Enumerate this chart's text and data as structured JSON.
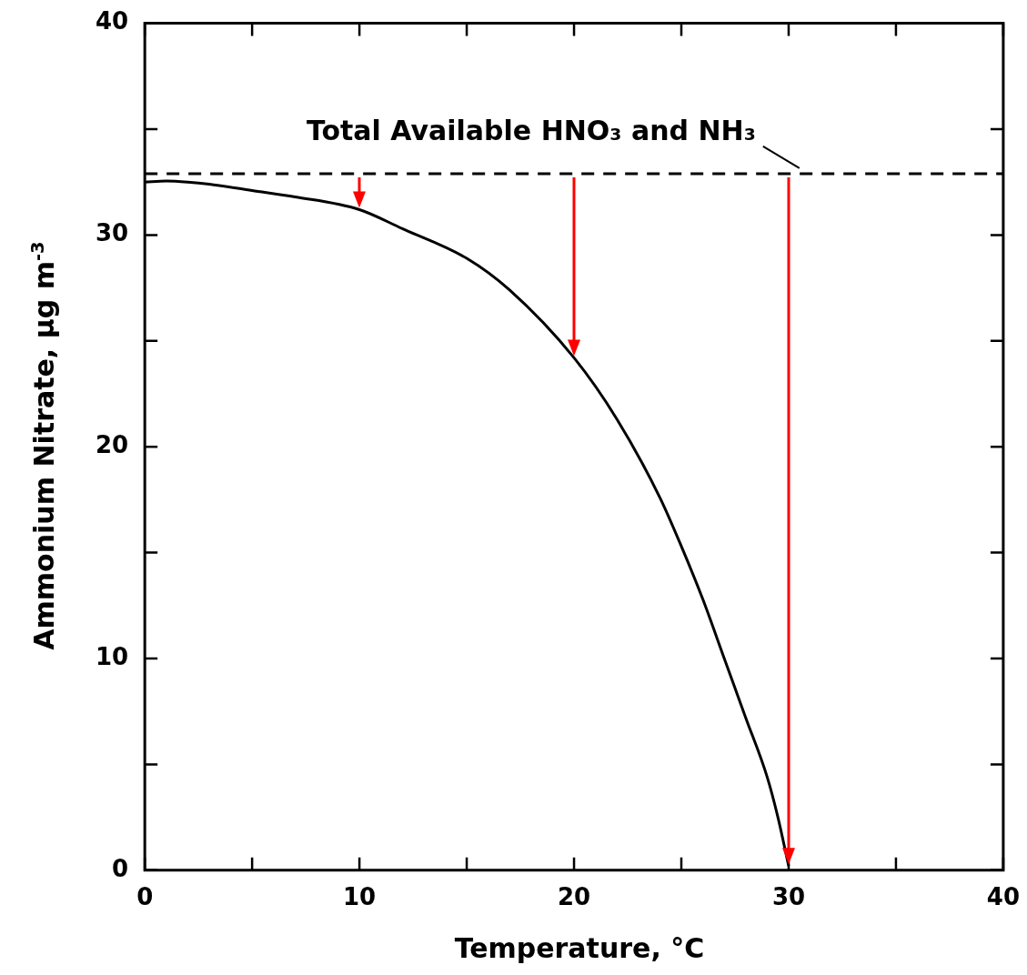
{
  "chart_data": {
    "type": "line",
    "xlabel": "Temperature, °C",
    "ylabel": "Ammonium Nitrate, μg m$^{-3}$",
    "x": [
      0,
      1,
      2,
      3,
      5,
      7,
      10,
      12,
      15,
      17,
      20,
      22,
      24,
      25,
      26,
      27,
      28,
      29,
      29.5,
      30
    ],
    "series": [
      {
        "color": "#000000",
        "values": [
          32.5,
          32.55,
          32.5,
          32.4,
          32.1,
          31.8,
          31.2,
          30.3,
          28.9,
          27.4,
          24.2,
          21.3,
          17.6,
          15.3,
          12.8,
          10.0,
          7.2,
          4.4,
          2.5,
          0.2
        ]
      }
    ],
    "xlim": [
      0,
      40
    ],
    "xticks": [
      0,
      {
        "value": 5,
        "label": null
      },
      10,
      {
        "value": 15,
        "label": null
      },
      20,
      {
        "value": 25,
        "label": null
      },
      30,
      {
        "value": 35,
        "label": null
      },
      40
    ],
    "ylim": [
      0,
      40
    ],
    "yticks": [
      0,
      {
        "value": 5,
        "label": null
      },
      10,
      {
        "value": 15,
        "label": null
      },
      20,
      {
        "value": 25,
        "label": null
      },
      30,
      {
        "value": 35,
        "label": null
      },
      40
    ],
    "ref_lines": [
      {
        "axis": "y",
        "value": 32.9,
        "label": "Total Available HNO₃ and NH₃",
        "line_style": "dashed",
        "color": "#000000"
      }
    ],
    "marker": "none",
    "line_style": "solid",
    "grid": false,
    "legend": false
  }
}
